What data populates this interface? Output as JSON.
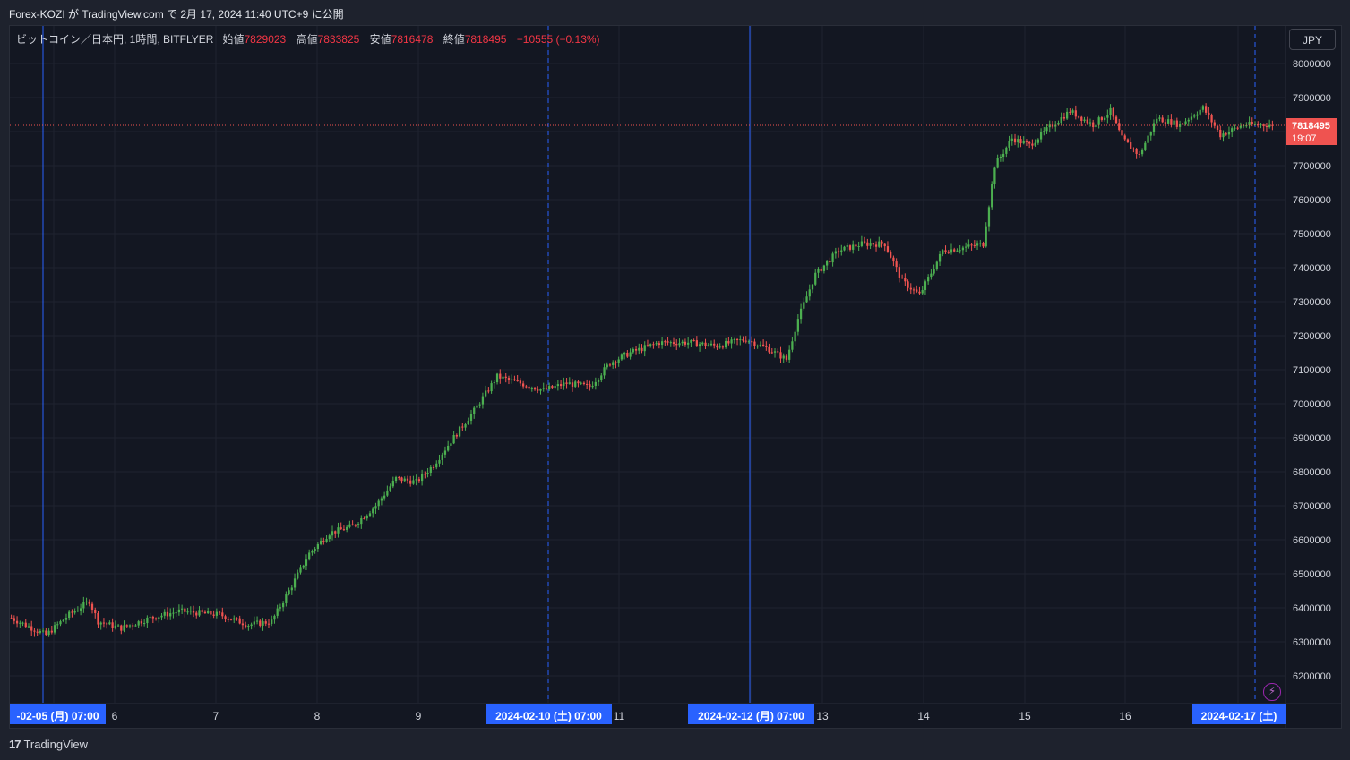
{
  "header": {
    "publish_text": "Forex-KOZI が TradingView.com で 2月 17, 2024 11:40 UTC+9 に公開"
  },
  "legend": {
    "symbol": "ビットコイン／日本円, 1時間, BITFLYER",
    "open_label": "始値",
    "open": "7829023",
    "high_label": "高値",
    "high": "7833825",
    "low_label": "安値",
    "low": "7816478",
    "close_label": "終値",
    "close": "7818495",
    "change": "−10555 (−0.13%)"
  },
  "currency_button": "JPY",
  "price_tag": {
    "price": "7818495",
    "countdown": "19:07"
  },
  "footer": {
    "brand": "TradingView",
    "alert_icon": "lightning-icon"
  },
  "colors": {
    "up": "#26a69a",
    "up_candle": "#4caf50",
    "down": "#ef5350",
    "vline": "#2962ff",
    "background": "#131722"
  },
  "chart_data": {
    "type": "candlestick",
    "ylim": [
      6150000,
      8050000
    ],
    "yticks": [
      6200000,
      6300000,
      6400000,
      6500000,
      6600000,
      6700000,
      6800000,
      6900000,
      7000000,
      7100000,
      7200000,
      7300000,
      7400000,
      7500000,
      7600000,
      7700000,
      7800000,
      7900000,
      8000000
    ],
    "x_labels": [
      "-02-05 (月)   07:00",
      "6",
      "7",
      "8",
      "9",
      "2024-02-10 (土)   07:00",
      "11",
      "2024-02-12 (月)   07:00",
      "13",
      "14",
      "15",
      "16",
      "2024-02-17 (土)"
    ],
    "trend_anchors": [
      [
        0,
        6370000
      ],
      [
        12,
        6320000
      ],
      [
        20,
        6380000
      ],
      [
        27,
        6420000
      ],
      [
        30,
        6360000
      ],
      [
        38,
        6340000
      ],
      [
        48,
        6370000
      ],
      [
        58,
        6390000
      ],
      [
        72,
        6380000
      ],
      [
        82,
        6350000
      ],
      [
        90,
        6360000
      ],
      [
        96,
        6450000
      ],
      [
        103,
        6560000
      ],
      [
        110,
        6620000
      ],
      [
        118,
        6640000
      ],
      [
        126,
        6700000
      ],
      [
        133,
        6780000
      ],
      [
        140,
        6770000
      ],
      [
        146,
        6820000
      ],
      [
        152,
        6890000
      ],
      [
        160,
        6980000
      ],
      [
        168,
        7080000
      ],
      [
        176,
        7060000
      ],
      [
        184,
        7040000
      ],
      [
        192,
        7060000
      ],
      [
        200,
        7050000
      ],
      [
        207,
        7120000
      ],
      [
        214,
        7150000
      ],
      [
        224,
        7180000
      ],
      [
        234,
        7180000
      ],
      [
        244,
        7170000
      ],
      [
        254,
        7190000
      ],
      [
        262,
        7160000
      ],
      [
        268,
        7130000
      ],
      [
        272,
        7250000
      ],
      [
        278,
        7380000
      ],
      [
        286,
        7450000
      ],
      [
        294,
        7470000
      ],
      [
        302,
        7470000
      ],
      [
        308,
        7360000
      ],
      [
        314,
        7320000
      ],
      [
        322,
        7450000
      ],
      [
        330,
        7460000
      ],
      [
        336,
        7470000
      ],
      [
        340,
        7700000
      ],
      [
        346,
        7780000
      ],
      [
        352,
        7760000
      ],
      [
        360,
        7820000
      ],
      [
        366,
        7860000
      ],
      [
        374,
        7820000
      ],
      [
        380,
        7860000
      ],
      [
        384,
        7780000
      ],
      [
        390,
        7730000
      ],
      [
        396,
        7840000
      ],
      [
        404,
        7820000
      ],
      [
        412,
        7870000
      ],
      [
        418,
        7790000
      ],
      [
        426,
        7820000
      ],
      [
        436,
        7820000
      ]
    ],
    "last_close": 7818495
  }
}
